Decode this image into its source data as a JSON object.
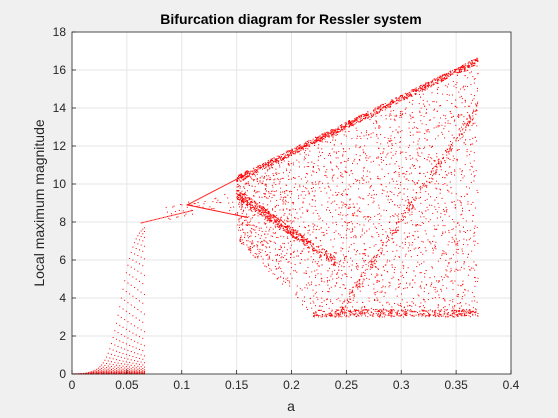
{
  "chart_data": {
    "type": "scatter",
    "title": "Bifurcation diagram for Ressler system",
    "xlabel": "a",
    "ylabel": "Local maximum magnitude",
    "xlim": [
      0,
      0.4
    ],
    "ylim": [
      0,
      18
    ],
    "xticks": [
      "0",
      "0.05",
      "0.1",
      "0.15",
      "0.2",
      "0.25",
      "0.3",
      "0.35",
      "0.4"
    ],
    "yticks": [
      "0",
      "2",
      "4",
      "6",
      "8",
      "10",
      "12",
      "14",
      "16",
      "18"
    ],
    "grid": true,
    "marker_color": "#ff0000",
    "sweep": {
      "a_start": 0.0,
      "a_end": 0.37,
      "transient_end_a": 0.063,
      "attractor_range_at_a_end": [
        3.0,
        16.0
      ]
    },
    "key_points": [
      {
        "a": 0.0,
        "y": 0.0
      },
      {
        "a": 0.063,
        "y": 8.0
      },
      {
        "a": 0.11,
        "y": 8.9
      },
      {
        "a": 0.145,
        "y": 9.8
      },
      {
        "a": 0.145,
        "y": 7.4
      },
      {
        "a": 0.2,
        "y": 11.0
      },
      {
        "a": 0.22,
        "y": 3.0
      },
      {
        "a": 0.26,
        "y": 12.5
      },
      {
        "a": 0.37,
        "y": 16.0
      },
      {
        "a": 0.37,
        "y": 3.0
      }
    ]
  }
}
